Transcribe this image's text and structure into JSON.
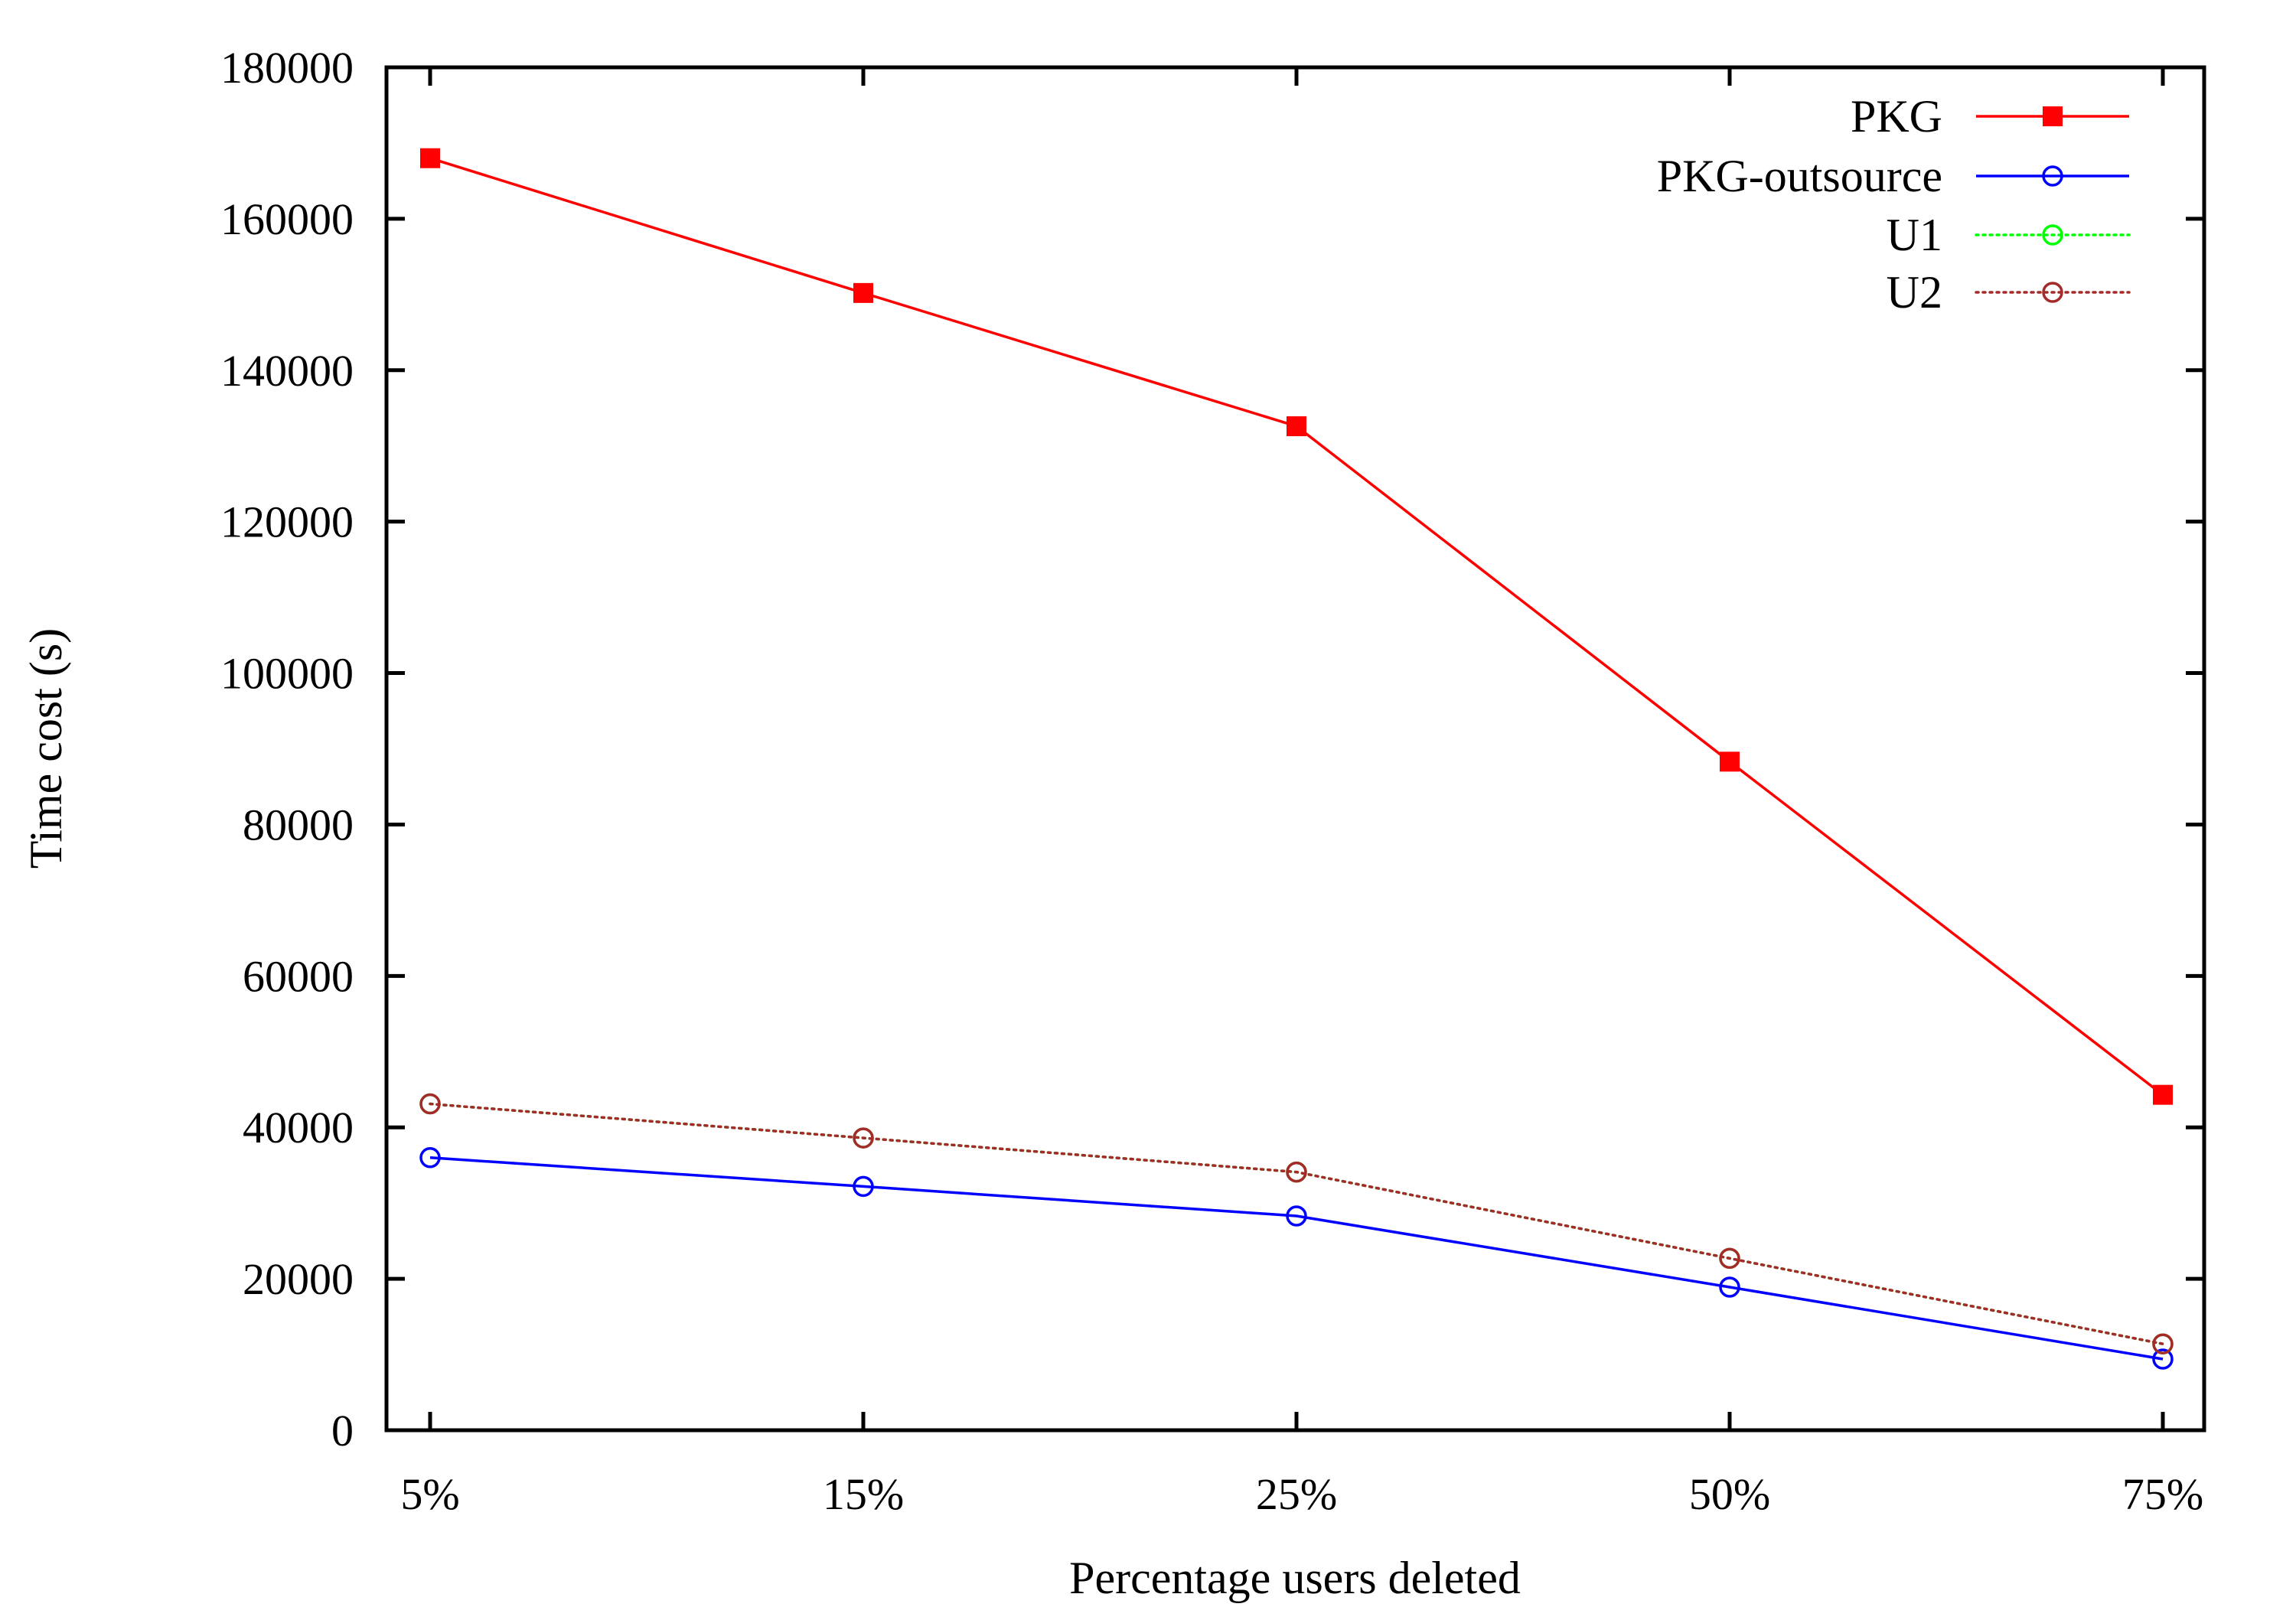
{
  "chart_data": {
    "type": "line",
    "title": "",
    "xlabel": "Percentage users deleted",
    "ylabel": "Time cost (s)",
    "categories": [
      "5%",
      "15%",
      "25%",
      "50%",
      "75%"
    ],
    "ylim": [
      0,
      180000
    ],
    "yticks": [
      0,
      20000,
      40000,
      60000,
      80000,
      100000,
      120000,
      140000,
      160000,
      180000
    ],
    "grid": false,
    "legend_position": "top-right",
    "series": [
      {
        "name": "PKG",
        "values": [
          168000,
          150200,
          132600,
          88300,
          44300
        ],
        "color": "#ff0000",
        "marker": "filled-square",
        "line_style": "solid"
      },
      {
        "name": "PKG-outsource",
        "values": [
          36000,
          32200,
          28300,
          18900,
          9400
        ],
        "color": "#0000ff",
        "marker": "open-circle",
        "line_style": "solid"
      },
      {
        "name": "U1",
        "values": [
          43100,
          38600,
          34100,
          22700,
          11400
        ],
        "color": "#00ff00",
        "marker": "open-circle",
        "line_style": "dotted"
      },
      {
        "name": "U2",
        "values": [
          43100,
          38600,
          34100,
          22700,
          11400
        ],
        "color": "#a52a2a",
        "marker": "open-circle",
        "line_style": "dotted"
      }
    ]
  }
}
